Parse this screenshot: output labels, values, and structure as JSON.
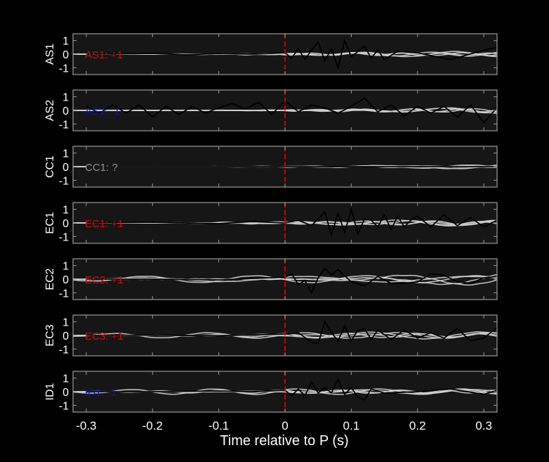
{
  "chart_data": {
    "type": "line",
    "xlabel": "Time relative to P (s)",
    "xlim": [
      -0.32,
      0.32
    ],
    "ylim": [
      -1.5,
      1.5
    ],
    "xticks": [
      -0.3,
      -0.2,
      -0.1,
      0,
      0.1,
      0.2,
      0.3
    ],
    "xtick_labels": [
      "-0.3",
      "-0.2",
      "-0.1",
      "0",
      "0.1",
      "0.2",
      "0.3"
    ],
    "yticks": [
      1,
      0,
      -1
    ],
    "ytick_labels": [
      "1",
      "0",
      "-1"
    ],
    "p_arrival_time": 0,
    "colors": {
      "background": "#000000",
      "axes": "#161616",
      "frame": "#9a9a9a",
      "trace": "#d2d2d2",
      "reference_trace": "#000000",
      "marker": "#cc0000",
      "positive": "#cc1010",
      "negative": "#1010b4",
      "unknown": "#8c8c8c"
    },
    "panels": [
      {
        "station": "AS1",
        "label": "AS1: +1",
        "label_color": "#cc1010",
        "reference_x": [
          -0.3,
          -0.25,
          -0.2,
          -0.15,
          -0.1,
          -0.05,
          0,
          0.01,
          0.02,
          0.03,
          0.04,
          0.05,
          0.06,
          0.07,
          0.08,
          0.09,
          0.1,
          0.11,
          0.12,
          0.13,
          0.14,
          0.15,
          0.17,
          0.2,
          0.25,
          0.3,
          0.32
        ],
        "reference_y": [
          0,
          0.02,
          0.05,
          -0.04,
          0.04,
          0,
          0.1,
          -0.3,
          0.4,
          -0.4,
          0.3,
          0.9,
          -0.5,
          0.4,
          -1.0,
          1.0,
          -0.2,
          0.2,
          0.6,
          -0.3,
          0.3,
          -0.4,
          0.2,
          0.1,
          -0.4,
          0.3,
          0.5
        ],
        "traces": [
          {
            "amplitude": 0.1,
            "freq": 12,
            "phase": 0.3,
            "env_start": 0.0
          },
          {
            "amplitude": 0.15,
            "freq": 9,
            "phase": 1.7,
            "env_start": 0.05
          },
          {
            "amplitude": 0.2,
            "freq": 7,
            "phase": 2.9,
            "env_start": 0.08
          },
          {
            "amplitude": 0.08,
            "freq": 15,
            "phase": 4.1,
            "env_start": -0.1
          }
        ]
      },
      {
        "station": "AS2",
        "label": "AS2: -1",
        "label_color": "#1010b4",
        "reference_x": [
          -0.3,
          -0.28,
          -0.26,
          -0.24,
          -0.22,
          -0.2,
          -0.18,
          -0.16,
          -0.14,
          -0.12,
          -0.1,
          -0.08,
          -0.06,
          -0.04,
          -0.02,
          0,
          0.02,
          0.04,
          0.06,
          0.08,
          0.1,
          0.12,
          0.14,
          0.16,
          0.18,
          0.2,
          0.22,
          0.24,
          0.26,
          0.28,
          0.3,
          0.32
        ],
        "reference_y": [
          0.3,
          -0.2,
          0.4,
          -0.2,
          0.4,
          -0.5,
          0.3,
          -0.3,
          0.3,
          -0.2,
          0.2,
          0.5,
          0.1,
          0.6,
          -0.3,
          0.7,
          -0.1,
          0.4,
          0.2,
          -0.2,
          0.3,
          0.9,
          -0.1,
          0.4,
          -0.4,
          0.3,
          -0.2,
          0.3,
          -0.5,
          0.4,
          -0.9,
          0.2
        ],
        "traces": [
          {
            "amplitude": 0.12,
            "freq": 11,
            "phase": 0.8,
            "env_start": 0.05
          },
          {
            "amplitude": 0.18,
            "freq": 8,
            "phase": 2.2,
            "env_start": 0.15
          },
          {
            "amplitude": 0.1,
            "freq": 14,
            "phase": 3.6,
            "env_start": 0.0
          },
          {
            "amplitude": 0.25,
            "freq": 6,
            "phase": 5.0,
            "env_start": 0.2
          }
        ]
      },
      {
        "station": "CC1",
        "label": "CC1: ?",
        "label_color": "#8c8c8c",
        "reference_x": [
          -0.3,
          0.32
        ],
        "reference_y": [
          0,
          0
        ],
        "traces": [
          {
            "amplitude": 0.05,
            "freq": 10,
            "phase": 0.5,
            "env_start": 0.0
          },
          {
            "amplitude": 0.12,
            "freq": 7,
            "phase": 1.9,
            "env_start": 0.1
          },
          {
            "amplitude": 0.2,
            "freq": 5,
            "phase": 3.1,
            "env_start": 0.2
          },
          {
            "amplitude": 0.06,
            "freq": 13,
            "phase": 4.4,
            "env_start": -0.05
          }
        ]
      },
      {
        "station": "EC1",
        "label": "EC1: +1",
        "label_color": "#cc1010",
        "reference_x": [
          -0.3,
          -0.2,
          -0.1,
          -0.05,
          0,
          0.02,
          0.04,
          0.06,
          0.07,
          0.08,
          0.09,
          0.1,
          0.11,
          0.12,
          0.13,
          0.14,
          0.15,
          0.16,
          0.17,
          0.18,
          0.19,
          0.2,
          0.22,
          0.24,
          0.26,
          0.28,
          0.3,
          0.32
        ],
        "reference_y": [
          0,
          0.05,
          -0.05,
          0.1,
          0.0,
          0.2,
          -0.2,
          0.8,
          -0.9,
          0.7,
          -0.7,
          1.0,
          -0.8,
          0.3,
          0.2,
          -0.3,
          0.6,
          -0.5,
          0.5,
          -0.3,
          0.2,
          0.5,
          -0.3,
          0.6,
          -0.2,
          0.4,
          -0.3,
          0.2
        ],
        "traces": [
          {
            "amplitude": 0.15,
            "freq": 10,
            "phase": 0.2,
            "env_start": 0.0
          },
          {
            "amplitude": 0.22,
            "freq": 6,
            "phase": 1.5,
            "env_start": 0.05
          },
          {
            "amplitude": 0.1,
            "freq": 13,
            "phase": 2.7,
            "env_start": -0.1
          },
          {
            "amplitude": 0.18,
            "freq": 8,
            "phase": 4.6,
            "env_start": 0.1
          }
        ]
      },
      {
        "station": "EC2",
        "label": "EC2: +1",
        "label_color": "#cc1010",
        "reference_x": [
          -0.3,
          -0.2,
          -0.1,
          0,
          0.01,
          0.02,
          0.03,
          0.04,
          0.05,
          0.06,
          0.07,
          0.08,
          0.1,
          0.12,
          0.14,
          0.16,
          0.18,
          0.2,
          0.22,
          0.24,
          0.26,
          0.28,
          0.3,
          0.32
        ],
        "reference_y": [
          0,
          0,
          -0.05,
          0.15,
          0.4,
          -0.4,
          -0.1,
          -1.0,
          0.1,
          0.8,
          0.3,
          0.7,
          -0.2,
          -0.5,
          0.2,
          -0.3,
          -0.3,
          -0.2,
          0.4,
          0.3,
          -0.2,
          -0.3,
          0.1,
          0.2
        ],
        "traces": [
          {
            "amplitude": 0.2,
            "freq": 4,
            "phase": 0.9,
            "env_start": -0.2
          },
          {
            "amplitude": 0.45,
            "freq": 5,
            "phase": 2.4,
            "env_start": 0.15
          },
          {
            "amplitude": 0.25,
            "freq": 6,
            "phase": 3.3,
            "env_start": -0.3
          },
          {
            "amplitude": 0.55,
            "freq": 4,
            "phase": 5.2,
            "env_start": 0.2
          }
        ]
      },
      {
        "station": "EC3",
        "label": "EC3: +1",
        "label_color": "#cc1010",
        "reference_x": [
          -0.3,
          -0.2,
          -0.1,
          0,
          0.02,
          0.04,
          0.05,
          0.06,
          0.07,
          0.08,
          0.09,
          0.1,
          0.11,
          0.12,
          0.13,
          0.14,
          0.16,
          0.18,
          0.2,
          0.22,
          0.24,
          0.26,
          0.28,
          0.3,
          0.32
        ],
        "reference_y": [
          0,
          0.02,
          -0.02,
          0.1,
          0.2,
          -0.5,
          -0.6,
          1.0,
          0.2,
          -0.4,
          0.7,
          -0.4,
          0.4,
          0.5,
          -0.3,
          0.4,
          -0.3,
          0.4,
          -0.2,
          0.2,
          -0.2,
          0.5,
          -0.4,
          -0.2,
          0.6
        ],
        "traces": [
          {
            "amplitude": 0.2,
            "freq": 7,
            "phase": 0.4,
            "env_start": -0.3
          },
          {
            "amplitude": 0.15,
            "freq": 10,
            "phase": 1.8,
            "env_start": -0.1
          },
          {
            "amplitude": 0.25,
            "freq": 6,
            "phase": 3.0,
            "env_start": 0.0
          },
          {
            "amplitude": 0.12,
            "freq": 12,
            "phase": 4.7,
            "env_start": 0.05
          }
        ]
      },
      {
        "station": "ID1",
        "label": "ID1: -1",
        "label_color": "#1010b4",
        "reference_x": [
          -0.3,
          -0.2,
          -0.1,
          -0.05,
          0,
          0.01,
          0.02,
          0.03,
          0.04,
          0.05,
          0.06,
          0.07,
          0.08,
          0.09,
          0.1,
          0.11,
          0.12,
          0.13,
          0.15,
          0.2,
          0.25,
          0.3,
          0.32
        ],
        "reference_y": [
          0,
          0,
          0.05,
          0,
          0.1,
          -0.3,
          0.2,
          -0.3,
          0.7,
          -0.1,
          0.3,
          -0.1,
          0.9,
          -0.2,
          0.3,
          -0.4,
          -0.6,
          0.2,
          -0.1,
          0.0,
          0.2,
          -0.2,
          0.1
        ],
        "traces": [
          {
            "amplitude": 0.2,
            "freq": 8,
            "phase": 0.7,
            "env_start": -0.3
          },
          {
            "amplitude": 0.12,
            "freq": 11,
            "phase": 2.1,
            "env_start": -0.2
          },
          {
            "amplitude": 0.15,
            "freq": 6,
            "phase": 3.5,
            "env_start": 0.0
          },
          {
            "amplitude": 0.1,
            "freq": 14,
            "phase": 5.3,
            "env_start": 0.1
          }
        ]
      }
    ]
  }
}
